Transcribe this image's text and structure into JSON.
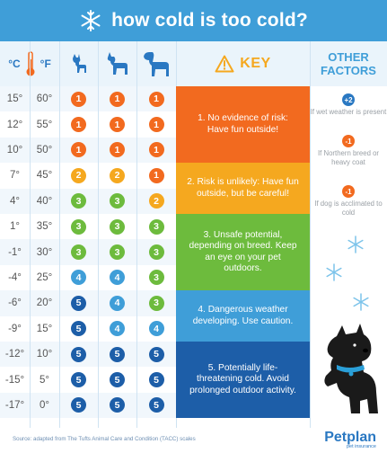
{
  "title": "how cold is too cold?",
  "header": {
    "celsius": "°C",
    "fahrenheit": "°F",
    "key": "KEY",
    "other_factors": "OTHER FACTORS"
  },
  "colors": {
    "1": "#f26a1f",
    "2": "#f5a81f",
    "3": "#6dbb3d",
    "4": "#3f9ed8",
    "5": "#1d5ea8"
  },
  "rows": [
    {
      "c": "15°",
      "f": "60°",
      "small": "1",
      "medium": "1",
      "large": "1"
    },
    {
      "c": "12°",
      "f": "55°",
      "small": "1",
      "medium": "1",
      "large": "1"
    },
    {
      "c": "10°",
      "f": "50°",
      "small": "1",
      "medium": "1",
      "large": "1"
    },
    {
      "c": "7°",
      "f": "45°",
      "small": "2",
      "medium": "2",
      "large": "1"
    },
    {
      "c": "4°",
      "f": "40°",
      "small": "3",
      "medium": "3",
      "large": "2"
    },
    {
      "c": "1°",
      "f": "35°",
      "small": "3",
      "medium": "3",
      "large": "3"
    },
    {
      "c": "-1°",
      "f": "30°",
      "small": "3",
      "medium": "3",
      "large": "3"
    },
    {
      "c": "-4°",
      "f": "25°",
      "small": "4",
      "medium": "4",
      "large": "3"
    },
    {
      "c": "-6°",
      "f": "20°",
      "small": "5",
      "medium": "4",
      "large": "3"
    },
    {
      "c": "-9°",
      "f": "15°",
      "small": "5",
      "medium": "4",
      "large": "4"
    },
    {
      "c": "-12°",
      "f": "10°",
      "small": "5",
      "medium": "5",
      "large": "5"
    },
    {
      "c": "-15°",
      "f": "5°",
      "small": "5",
      "medium": "5",
      "large": "5"
    },
    {
      "c": "-17°",
      "f": "0°",
      "small": "5",
      "medium": "5",
      "large": "5"
    }
  ],
  "key": [
    {
      "level": "1",
      "text": "1. No evidence of risk: Have fun outside!"
    },
    {
      "level": "2",
      "text": "2. Risk is unlikely: Have fun outside, but be careful!"
    },
    {
      "level": "3",
      "text": "3. Unsafe potential, depending on breed. Keep an eye on your pet outdoors."
    },
    {
      "level": "4",
      "text": "4. Dangerous weather developing. Use caution."
    },
    {
      "level": "5",
      "text": "5. Potentially life-threatening cold. Avoid prolonged outdoor activity."
    }
  ],
  "other_factors": [
    {
      "badge": "+2",
      "text": "If wet weather is present"
    },
    {
      "badge": "-1",
      "text": "If Northern breed or heavy coat"
    },
    {
      "badge": "-1",
      "text": "If dog is acclimated to cold"
    }
  ],
  "footer": {
    "source": "Source: adapted from The Tufts Animal Care and Condition (TACC) scales",
    "brand": "Petplan",
    "tagline": "pet insurance"
  }
}
